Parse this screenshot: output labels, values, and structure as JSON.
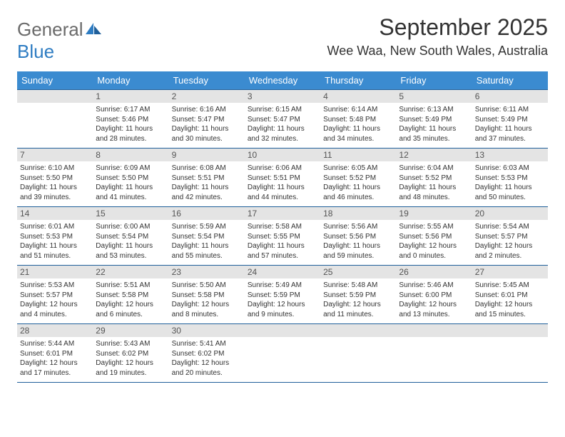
{
  "brand": {
    "part1": "General",
    "part2": "Blue"
  },
  "title": "September 2025",
  "location": "Wee Waa, New South Wales, Australia",
  "colors": {
    "header_bg": "#3b8bd0",
    "header_text": "#ffffff",
    "daynum_bg": "#e4e4e4",
    "rule": "#1f5f9a",
    "brand_gray": "#6a6a6a",
    "brand_blue": "#2e7cc2"
  },
  "dow": [
    "Sunday",
    "Monday",
    "Tuesday",
    "Wednesday",
    "Thursday",
    "Friday",
    "Saturday"
  ],
  "weeks": [
    [
      {
        "n": "",
        "sr": "",
        "ss": "",
        "dl": ""
      },
      {
        "n": "1",
        "sr": "Sunrise: 6:17 AM",
        "ss": "Sunset: 5:46 PM",
        "dl": "Daylight: 11 hours and 28 minutes."
      },
      {
        "n": "2",
        "sr": "Sunrise: 6:16 AM",
        "ss": "Sunset: 5:47 PM",
        "dl": "Daylight: 11 hours and 30 minutes."
      },
      {
        "n": "3",
        "sr": "Sunrise: 6:15 AM",
        "ss": "Sunset: 5:47 PM",
        "dl": "Daylight: 11 hours and 32 minutes."
      },
      {
        "n": "4",
        "sr": "Sunrise: 6:14 AM",
        "ss": "Sunset: 5:48 PM",
        "dl": "Daylight: 11 hours and 34 minutes."
      },
      {
        "n": "5",
        "sr": "Sunrise: 6:13 AM",
        "ss": "Sunset: 5:49 PM",
        "dl": "Daylight: 11 hours and 35 minutes."
      },
      {
        "n": "6",
        "sr": "Sunrise: 6:11 AM",
        "ss": "Sunset: 5:49 PM",
        "dl": "Daylight: 11 hours and 37 minutes."
      }
    ],
    [
      {
        "n": "7",
        "sr": "Sunrise: 6:10 AM",
        "ss": "Sunset: 5:50 PM",
        "dl": "Daylight: 11 hours and 39 minutes."
      },
      {
        "n": "8",
        "sr": "Sunrise: 6:09 AM",
        "ss": "Sunset: 5:50 PM",
        "dl": "Daylight: 11 hours and 41 minutes."
      },
      {
        "n": "9",
        "sr": "Sunrise: 6:08 AM",
        "ss": "Sunset: 5:51 PM",
        "dl": "Daylight: 11 hours and 42 minutes."
      },
      {
        "n": "10",
        "sr": "Sunrise: 6:06 AM",
        "ss": "Sunset: 5:51 PM",
        "dl": "Daylight: 11 hours and 44 minutes."
      },
      {
        "n": "11",
        "sr": "Sunrise: 6:05 AM",
        "ss": "Sunset: 5:52 PM",
        "dl": "Daylight: 11 hours and 46 minutes."
      },
      {
        "n": "12",
        "sr": "Sunrise: 6:04 AM",
        "ss": "Sunset: 5:52 PM",
        "dl": "Daylight: 11 hours and 48 minutes."
      },
      {
        "n": "13",
        "sr": "Sunrise: 6:03 AM",
        "ss": "Sunset: 5:53 PM",
        "dl": "Daylight: 11 hours and 50 minutes."
      }
    ],
    [
      {
        "n": "14",
        "sr": "Sunrise: 6:01 AM",
        "ss": "Sunset: 5:53 PM",
        "dl": "Daylight: 11 hours and 51 minutes."
      },
      {
        "n": "15",
        "sr": "Sunrise: 6:00 AM",
        "ss": "Sunset: 5:54 PM",
        "dl": "Daylight: 11 hours and 53 minutes."
      },
      {
        "n": "16",
        "sr": "Sunrise: 5:59 AM",
        "ss": "Sunset: 5:54 PM",
        "dl": "Daylight: 11 hours and 55 minutes."
      },
      {
        "n": "17",
        "sr": "Sunrise: 5:58 AM",
        "ss": "Sunset: 5:55 PM",
        "dl": "Daylight: 11 hours and 57 minutes."
      },
      {
        "n": "18",
        "sr": "Sunrise: 5:56 AM",
        "ss": "Sunset: 5:56 PM",
        "dl": "Daylight: 11 hours and 59 minutes."
      },
      {
        "n": "19",
        "sr": "Sunrise: 5:55 AM",
        "ss": "Sunset: 5:56 PM",
        "dl": "Daylight: 12 hours and 0 minutes."
      },
      {
        "n": "20",
        "sr": "Sunrise: 5:54 AM",
        "ss": "Sunset: 5:57 PM",
        "dl": "Daylight: 12 hours and 2 minutes."
      }
    ],
    [
      {
        "n": "21",
        "sr": "Sunrise: 5:53 AM",
        "ss": "Sunset: 5:57 PM",
        "dl": "Daylight: 12 hours and 4 minutes."
      },
      {
        "n": "22",
        "sr": "Sunrise: 5:51 AM",
        "ss": "Sunset: 5:58 PM",
        "dl": "Daylight: 12 hours and 6 minutes."
      },
      {
        "n": "23",
        "sr": "Sunrise: 5:50 AM",
        "ss": "Sunset: 5:58 PM",
        "dl": "Daylight: 12 hours and 8 minutes."
      },
      {
        "n": "24",
        "sr": "Sunrise: 5:49 AM",
        "ss": "Sunset: 5:59 PM",
        "dl": "Daylight: 12 hours and 9 minutes."
      },
      {
        "n": "25",
        "sr": "Sunrise: 5:48 AM",
        "ss": "Sunset: 5:59 PM",
        "dl": "Daylight: 12 hours and 11 minutes."
      },
      {
        "n": "26",
        "sr": "Sunrise: 5:46 AM",
        "ss": "Sunset: 6:00 PM",
        "dl": "Daylight: 12 hours and 13 minutes."
      },
      {
        "n": "27",
        "sr": "Sunrise: 5:45 AM",
        "ss": "Sunset: 6:01 PM",
        "dl": "Daylight: 12 hours and 15 minutes."
      }
    ],
    [
      {
        "n": "28",
        "sr": "Sunrise: 5:44 AM",
        "ss": "Sunset: 6:01 PM",
        "dl": "Daylight: 12 hours and 17 minutes."
      },
      {
        "n": "29",
        "sr": "Sunrise: 5:43 AM",
        "ss": "Sunset: 6:02 PM",
        "dl": "Daylight: 12 hours and 19 minutes."
      },
      {
        "n": "30",
        "sr": "Sunrise: 5:41 AM",
        "ss": "Sunset: 6:02 PM",
        "dl": "Daylight: 12 hours and 20 minutes."
      },
      {
        "n": "",
        "sr": "",
        "ss": "",
        "dl": ""
      },
      {
        "n": "",
        "sr": "",
        "ss": "",
        "dl": ""
      },
      {
        "n": "",
        "sr": "",
        "ss": "",
        "dl": ""
      },
      {
        "n": "",
        "sr": "",
        "ss": "",
        "dl": ""
      }
    ]
  ]
}
